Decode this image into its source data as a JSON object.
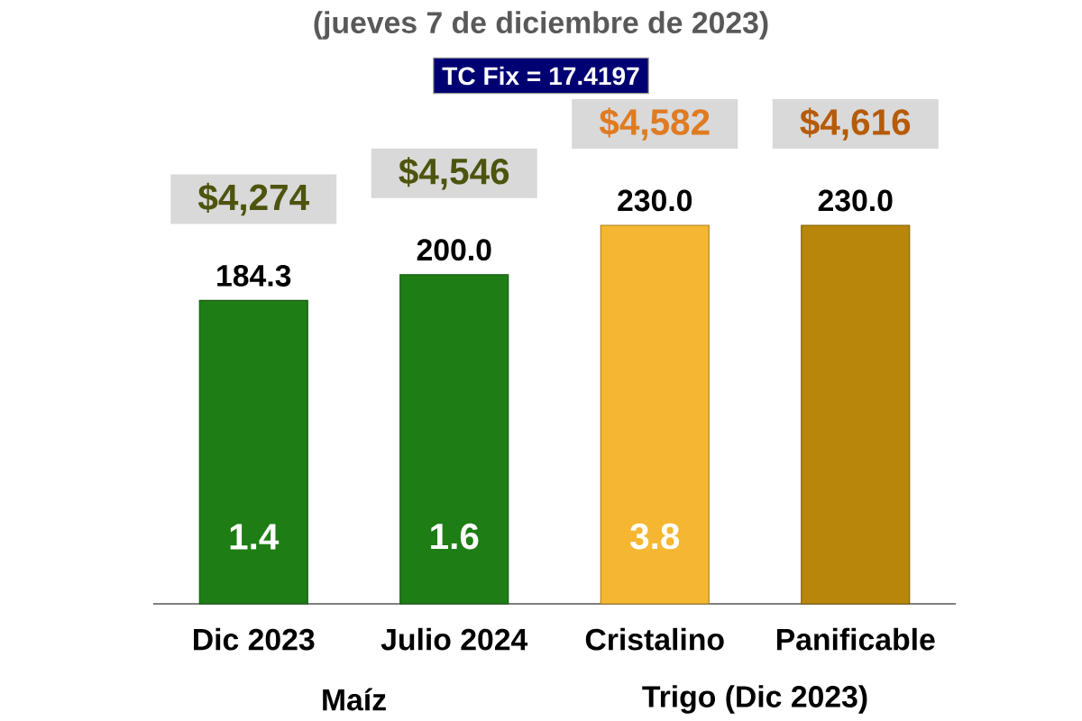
{
  "chart_data": {
    "type": "bar",
    "title": "(jueves 7 de diciembre de 2023)",
    "categories": [
      "Dic 2023",
      "Julio 2024",
      "Cristalino",
      "Panificable"
    ],
    "values": [
      184.3,
      200.0,
      230.0,
      230.0
    ],
    "value_labels": [
      "184.3",
      "200.0",
      "230.0",
      "230.0"
    ],
    "colors": [
      "#1e7d14",
      "#1e7d14",
      "#f5b731",
      "#b8860b"
    ],
    "annotations": [
      "TC Fix = 17.4197",
      "$4,274",
      "$4,546",
      "$4,582",
      "$4,616",
      "1.4",
      "1.6",
      "3.8",
      "Maíz",
      "Trigo (Dic 2023)"
    ]
  }
}
